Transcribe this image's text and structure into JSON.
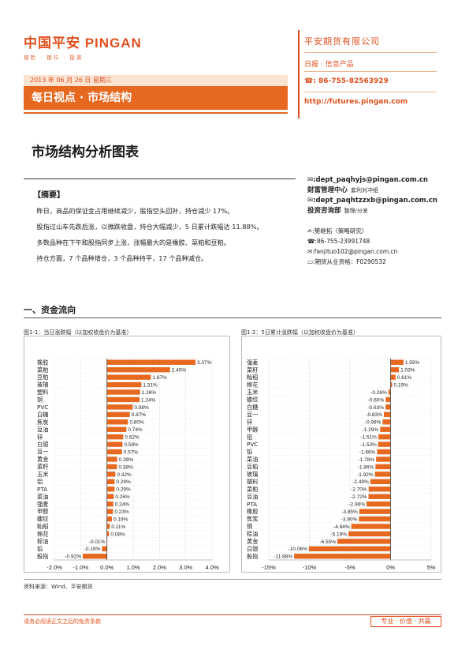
{
  "header": {
    "logo_text": "中国平安 PINGAN",
    "logo_sub": "保险 · 银行 · 投资",
    "date": "2013 年 06 月 26 日  星期三",
    "banner": "每日视点 · 市场结构",
    "company": "平安期货有限公司",
    "product": "日报 · 信息产品",
    "phone": "☎: 86-755-82563929",
    "url": "http://futures.pingan.com"
  },
  "title": "市场结构分析图表",
  "summary": {
    "heading": "【摘要】",
    "paragraphs": [
      "昨日，商品的保证金占用继续减少，股指空头回补，持仓减少 17%。",
      "股指过山车先跌后涨，以微跌收盘，持仓大幅减少，5 日累计跌幅达 11.88%。",
      "多数品种在下午和股指同步上涨，涨幅最大的是橡胶、菜粕和豆粕。",
      "持仓方面，7 个品种增仓，3 个品种持平，17 个品种减仓。"
    ]
  },
  "contacts": {
    "email1": "✉:dept_paqhyjs@pingan.com.cn",
    "dept1": "财富管理中心",
    "dept1_sub": "套利对冲组",
    "email2": "✉:dept_paqhtzzxb@pingan.com.cn",
    "dept2": "投资咨询部",
    "dept2_sub": "整理/分发",
    "analyst": "✍:樊继拓（策略研究）",
    "analyst_phone": "☎:86-755-23991748",
    "analyst_email": "✉:fanjituo102@pingan.com.cn",
    "license": "▭:期货从业资格：F0290532"
  },
  "section": "一、资金流向",
  "source": "资料来源：Wind、平安期货",
  "footer": {
    "note": "请务必阅读正文之后的免责条款",
    "slogan": "专业 · 价值 · 共赢"
  },
  "chart_data": [
    {
      "type": "bar",
      "orientation": "horizontal",
      "title": "图1-1：当日涨跌幅（以加权收盘价为基准）",
      "categories": [
        "橡胶",
        "菜粕",
        "豆粕",
        "玻璃",
        "塑料",
        "铜",
        "PVC",
        "白糖",
        "焦炭",
        "豆油",
        "锌",
        "白银",
        "豆一",
        "黄金",
        "菜籽",
        "玉米",
        "铝",
        "PTA",
        "菜油",
        "强麦",
        "甲醇",
        "螺纹",
        "籼稻",
        "棉花",
        "棕油",
        "铅",
        "股指"
      ],
      "values": [
        3.37,
        2.4,
        1.67,
        1.31,
        1.26,
        1.24,
        0.98,
        0.87,
        0.8,
        0.74,
        0.62,
        0.59,
        0.57,
        0.39,
        0.38,
        0.32,
        0.29,
        0.29,
        0.26,
        0.24,
        0.23,
        0.19,
        0.11,
        0.08,
        -0.01,
        -0.19,
        -0.92
      ],
      "labels": [
        "3.37%",
        "2.40%",
        "1.67%",
        "1.31%",
        "1.26%",
        "1.24%",
        "0.98%",
        "0.87%",
        "0.80%",
        "0.74%",
        "0.62%",
        "0.59%",
        "0.57%",
        "0.39%",
        "0.38%",
        "0.32%",
        "0.29%",
        "0.29%",
        "0.26%",
        "0.24%",
        "0.23%",
        "0.19%",
        "0.11%",
        "0.08%",
        "-0.01%",
        "-0.19%",
        "-0.92%"
      ],
      "xlim": [
        -2.0,
        4.0
      ],
      "xticks": [
        -2.0,
        -1.0,
        0.0,
        1.0,
        2.0,
        3.0,
        4.0
      ],
      "xtick_labels": [
        "-2.0%",
        "-1.0%",
        "0.0%",
        "1.0%",
        "2.0%",
        "3.0%",
        "4.0%"
      ],
      "color": "#e7681f",
      "grid": true
    },
    {
      "type": "bar",
      "orientation": "horizontal",
      "title": "图1-2：5日累计涨跌幅（以加权收盘价为基准）",
      "categories": [
        "强麦",
        "菜籽",
        "籼稻",
        "棉花",
        "玉米",
        "螺纹",
        "白糖",
        "豆一",
        "锌",
        "甲醇",
        "铝",
        "PVC",
        "铅",
        "菜油",
        "豆粕",
        "玻璃",
        "塑料",
        "菜粕",
        "豆油",
        "PTA",
        "橡胶",
        "焦炭",
        "铜",
        "棕油",
        "黄金",
        "白银",
        "股指"
      ],
      "values": [
        1.59,
        1.03,
        0.61,
        0.19,
        -0.26,
        -0.6,
        -0.63,
        -0.83,
        -0.98,
        -1.29,
        -1.51,
        -1.53,
        -1.66,
        -1.78,
        -1.86,
        -1.92,
        -2.49,
        -2.7,
        -2.72,
        -2.96,
        -3.85,
        -3.9,
        -4.84,
        -5.19,
        -6.55,
        -10.06,
        -11.88
      ],
      "labels": [
        "1.59%",
        "1.03%",
        "0.61%",
        "0.19%",
        "-0.26%",
        "-0.60%",
        "-0.63%",
        "-0.83%",
        "-0.98%",
        "-1.29%",
        "-1.51%",
        "-1.53%",
        "-1.66%",
        "-1.78%",
        "-1.86%",
        "-1.92%",
        "-2.49%",
        "-2.70%",
        "-2.72%",
        "-2.96%",
        "-3.85%",
        "-3.90%",
        "-4.84%",
        "-5.19%",
        "-6.55%",
        "-10.06%",
        "-11.88%"
      ],
      "xlim": [
        -15,
        5
      ],
      "xticks": [
        -15,
        -10,
        -5,
        0,
        5
      ],
      "xtick_labels": [
        "-15%",
        "-10%",
        "-5%",
        "0%",
        "5%"
      ],
      "color": "#e7681f",
      "grid": true
    }
  ]
}
